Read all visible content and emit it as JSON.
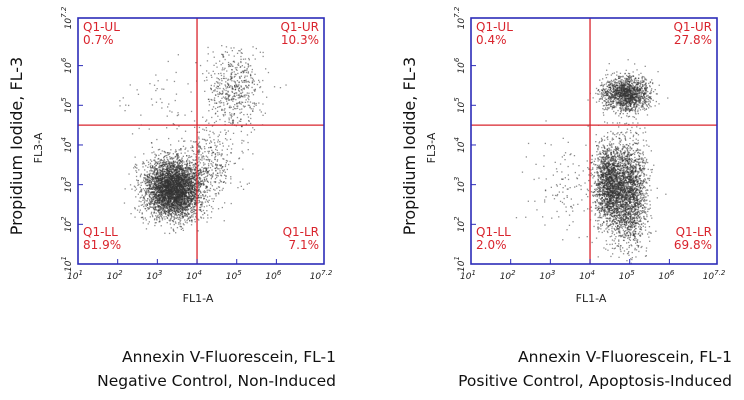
{
  "chart_data": [
    {
      "type": "scatter",
      "title": "",
      "xlabel": "FL1-A",
      "ylabel": "FL3-A",
      "outer_ylabel": "Propidium Iodide, FL-3",
      "outer_xlabel": "Annexin V-Fluorescein, FL-1",
      "caption": "Negative Control, Non-Induced",
      "scale": "log",
      "xlim": [
        1,
        7.2
      ],
      "ylim": [
        1,
        7.2
      ],
      "xticks": [
        {
          "base": "10",
          "exp": "1"
        },
        {
          "base": "10",
          "exp": "2"
        },
        {
          "base": "10",
          "exp": "3"
        },
        {
          "base": "10",
          "exp": "4"
        },
        {
          "base": "10",
          "exp": "5"
        },
        {
          "base": "10",
          "exp": "6"
        },
        {
          "base": "10",
          "exp": "7.2"
        }
      ],
      "yticks": [
        {
          "base": "10",
          "exp": "1"
        },
        {
          "base": "10",
          "exp": "2"
        },
        {
          "base": "10",
          "exp": "3"
        },
        {
          "base": "10",
          "exp": "4"
        },
        {
          "base": "10",
          "exp": "5"
        },
        {
          "base": "10",
          "exp": "6"
        },
        {
          "base": "10",
          "exp": "7.2"
        }
      ],
      "gate": {
        "x": 4.0,
        "y": 4.5
      },
      "quadrants": [
        {
          "name": "Q1-UL",
          "value": "0.7%"
        },
        {
          "name": "Q1-UR",
          "value": "10.3%"
        },
        {
          "name": "Q1-LL",
          "value": "81.9%"
        },
        {
          "name": "Q1-LR",
          "value": "7.1%"
        }
      ],
      "clusters": [
        {
          "x": 3.4,
          "y": 2.9,
          "sx": 0.36,
          "sy": 0.36,
          "fraction": 0.82
        },
        {
          "x": 4.9,
          "y": 5.4,
          "sx": 0.35,
          "sy": 0.5,
          "fraction": 0.1
        },
        {
          "x": 4.3,
          "y": 3.6,
          "sx": 0.35,
          "sy": 0.45,
          "fraction": 0.07
        },
        {
          "x": 3.0,
          "y": 5.0,
          "sx": 0.5,
          "sy": 0.6,
          "fraction": 0.01
        }
      ],
      "colors": {
        "points": "#333333",
        "gate": "#d9242d",
        "axis": "#2c2cb8",
        "quadrant_text": "#d9242d"
      }
    },
    {
      "type": "scatter",
      "title": "",
      "xlabel": "FL1-A",
      "ylabel": "FL3-A",
      "outer_ylabel": "Propidium Iodide, FL-3",
      "outer_xlabel": "Annexin V-Fluorescein, FL-1",
      "caption": "Positive Control, Apoptosis-Induced",
      "scale": "log",
      "xlim": [
        1,
        7.2
      ],
      "ylim": [
        1,
        7.2
      ],
      "xticks": [
        {
          "base": "10",
          "exp": "1"
        },
        {
          "base": "10",
          "exp": "2"
        },
        {
          "base": "10",
          "exp": "3"
        },
        {
          "base": "10",
          "exp": "4"
        },
        {
          "base": "10",
          "exp": "5"
        },
        {
          "base": "10",
          "exp": "6"
        },
        {
          "base": "10",
          "exp": "7.2"
        }
      ],
      "yticks": [
        {
          "base": "10",
          "exp": "1"
        },
        {
          "base": "10",
          "exp": "2"
        },
        {
          "base": "10",
          "exp": "3"
        },
        {
          "base": "10",
          "exp": "4"
        },
        {
          "base": "10",
          "exp": "5"
        },
        {
          "base": "10",
          "exp": "6"
        },
        {
          "base": "10",
          "exp": "7.2"
        }
      ],
      "gate": {
        "x": 4.0,
        "y": 4.5
      },
      "quadrants": [
        {
          "name": "Q1-UL",
          "value": "0.4%"
        },
        {
          "name": "Q1-UR",
          "value": "27.8%"
        },
        {
          "name": "Q1-LL",
          "value": "2.0%"
        },
        {
          "name": "Q1-LR",
          "value": "69.8%"
        }
      ],
      "clusters": [
        {
          "x": 4.5,
          "y": 3.0,
          "sx": 0.2,
          "sy": 0.55,
          "fraction": 0.36
        },
        {
          "x": 5.0,
          "y": 2.8,
          "sx": 0.22,
          "sy": 0.65,
          "fraction": 0.34
        },
        {
          "x": 4.9,
          "y": 5.3,
          "sx": 0.3,
          "sy": 0.22,
          "fraction": 0.28
        },
        {
          "x": 3.3,
          "y": 3.0,
          "sx": 0.4,
          "sy": 0.6,
          "fraction": 0.02
        }
      ],
      "colors": {
        "points": "#333333",
        "gate": "#d9242d",
        "axis": "#2c2cb8",
        "quadrant_text": "#d9242d"
      }
    }
  ]
}
